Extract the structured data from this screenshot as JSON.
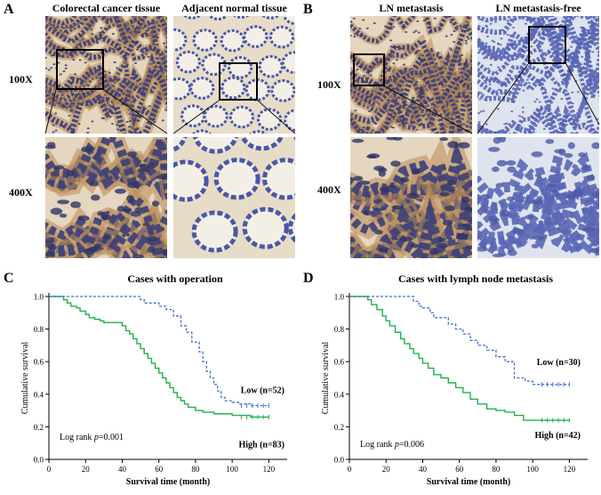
{
  "panel_letters": {
    "a": "A",
    "b": "B",
    "c": "C",
    "d": "D"
  },
  "panel_a": {
    "left_title": "Colorectal cancer tissue",
    "right_title": "Adjacent normal tissue",
    "row1_label": "100X",
    "row2_label": "400X"
  },
  "panel_b": {
    "left_title": "LN metastasis",
    "right_title": "LN metastasis-free",
    "row1_label": "100X",
    "row2_label": "400X"
  },
  "colors": {
    "stroma": "#e4d6bf",
    "cancer_nuclei": "#3b3f79",
    "normal_nuclei": "#4a57a8",
    "brown_stain": "#b98c55",
    "high_line": "#22b14c",
    "low_line": "#3f6fd6",
    "box_border": "#000000"
  },
  "chart_data": [
    {
      "type": "line",
      "title": "Cases with operation",
      "xlabel": "Survival time (month)",
      "ylabel": "Cumulative survival",
      "xlim": [
        0,
        130
      ],
      "ylim": [
        0,
        1.0
      ],
      "xticks": [
        0,
        20,
        40,
        60,
        80,
        100,
        120
      ],
      "yticks": [
        0.0,
        0.2,
        0.4,
        0.6,
        0.8,
        1.0
      ],
      "annotation_prefix": "Log rank ",
      "annotation_p": "p",
      "annotation_value": "=0.001",
      "series": [
        {
          "name": "High (n=83)",
          "style": "solid",
          "x": [
            0,
            5,
            8,
            10,
            12,
            15,
            17,
            20,
            22,
            25,
            28,
            30,
            35,
            40,
            42,
            44,
            46,
            48,
            50,
            52,
            54,
            56,
            58,
            60,
            62,
            64,
            66,
            68,
            70,
            72,
            74,
            76,
            80,
            84,
            90,
            100,
            110,
            120
          ],
          "y": [
            1.0,
            1.0,
            0.98,
            0.96,
            0.94,
            0.93,
            0.91,
            0.89,
            0.87,
            0.86,
            0.85,
            0.84,
            0.84,
            0.82,
            0.79,
            0.77,
            0.74,
            0.71,
            0.68,
            0.65,
            0.62,
            0.59,
            0.56,
            0.53,
            0.5,
            0.47,
            0.44,
            0.41,
            0.38,
            0.36,
            0.34,
            0.32,
            0.3,
            0.29,
            0.28,
            0.27,
            0.26,
            0.26
          ]
        },
        {
          "name": "Low (n=52)",
          "style": "dashed",
          "x": [
            0,
            15,
            25,
            35,
            45,
            50,
            52,
            56,
            60,
            64,
            68,
            72,
            75,
            78,
            82,
            84,
            86,
            88,
            90,
            92,
            94,
            96,
            100,
            104,
            110,
            120
          ],
          "y": [
            1.0,
            1.0,
            1.0,
            1.0,
            1.0,
            0.98,
            0.96,
            0.96,
            0.94,
            0.92,
            0.88,
            0.82,
            0.78,
            0.72,
            0.66,
            0.6,
            0.54,
            0.5,
            0.46,
            0.42,
            0.38,
            0.36,
            0.35,
            0.34,
            0.33,
            0.33
          ]
        }
      ]
    },
    {
      "type": "line",
      "title": "Cases with lymph  node metastasis",
      "xlabel": "Survival time (month)",
      "ylabel": "Cumulative survival",
      "xlim": [
        0,
        130
      ],
      "ylim": [
        0,
        1.0
      ],
      "xticks": [
        0,
        20,
        40,
        60,
        80,
        100,
        120
      ],
      "yticks": [
        0.0,
        0.2,
        0.4,
        0.6,
        0.8,
        1.0
      ],
      "annotation_prefix": "Log rank ",
      "annotation_p": "p",
      "annotation_value": "=0.006",
      "series": [
        {
          "name": "High (n=42)",
          "style": "solid",
          "x": [
            0,
            8,
            10,
            12,
            15,
            18,
            20,
            22,
            25,
            28,
            30,
            33,
            35,
            38,
            40,
            43,
            46,
            50,
            54,
            58,
            62,
            66,
            70,
            75,
            80,
            85,
            90,
            95,
            100,
            110,
            120
          ],
          "y": [
            1.0,
            1.0,
            0.98,
            0.95,
            0.92,
            0.88,
            0.85,
            0.82,
            0.78,
            0.74,
            0.71,
            0.68,
            0.65,
            0.62,
            0.59,
            0.56,
            0.52,
            0.5,
            0.47,
            0.44,
            0.41,
            0.37,
            0.34,
            0.31,
            0.3,
            0.29,
            0.27,
            0.24,
            0.24,
            0.24,
            0.24
          ]
        },
        {
          "name": "Low (n=30)",
          "style": "dashed",
          "x": [
            0,
            10,
            20,
            30,
            35,
            38,
            40,
            44,
            46,
            50,
            54,
            58,
            62,
            66,
            70,
            75,
            80,
            85,
            90,
            96,
            100,
            105,
            110,
            120
          ],
          "y": [
            1.0,
            1.0,
            1.0,
            1.0,
            0.97,
            0.94,
            0.93,
            0.9,
            0.87,
            0.87,
            0.83,
            0.8,
            0.77,
            0.73,
            0.7,
            0.67,
            0.63,
            0.6,
            0.5,
            0.48,
            0.46,
            0.46,
            0.46,
            0.46
          ]
        }
      ]
    }
  ]
}
